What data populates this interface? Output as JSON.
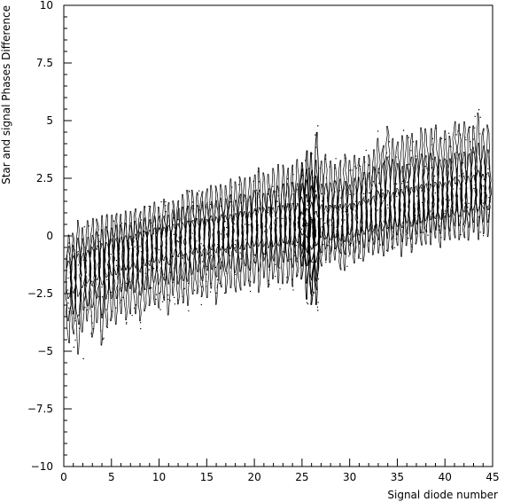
{
  "chart_data": {
    "type": "scatter",
    "style": "contour",
    "title": "",
    "xlabel": "Signal diode number",
    "ylabel": "Star and signal Phases Difference",
    "xlim": [
      0,
      45
    ],
    "ylim": [
      -10,
      10
    ],
    "x_major_ticks": [
      0,
      5,
      10,
      15,
      20,
      25,
      30,
      35,
      40,
      45
    ],
    "x_tick_labels": [
      "0",
      "5",
      "10",
      "15",
      "20",
      "25",
      "30",
      "35",
      "40",
      "45"
    ],
    "y_major_ticks": [
      -10,
      -7.5,
      -5,
      -2.5,
      0,
      2.5,
      5,
      7.5,
      10
    ],
    "y_tick_labels": [
      "−10",
      "−7.5",
      "−5",
      "−2.5",
      "0",
      "2.5",
      "5",
      "7.5",
      "10"
    ],
    "grid": false,
    "line_color": "#000000",
    "series": [
      {
        "x": [
          0.5,
          1,
          1.5,
          2,
          2.5,
          3,
          3.5,
          4,
          4.5,
          5,
          5.5,
          6,
          6.5,
          7,
          7.5,
          8,
          8.5,
          9,
          9.5,
          10,
          10.5,
          11,
          11.5,
          12,
          12.5,
          13,
          13.5,
          14,
          14.5,
          15,
          15.5,
          16,
          16.5,
          17,
          17.5,
          18,
          18.5,
          19,
          19.5,
          20,
          20.5,
          21,
          21.5,
          22,
          22.5,
          23,
          23.5,
          24,
          24.5,
          25,
          25.5,
          26,
          26.5,
          27,
          27.5,
          28,
          28.5,
          29,
          29.5,
          30,
          30.5,
          31,
          31.5,
          32,
          32.5,
          33,
          33.5,
          34,
          34.5,
          35,
          35.5,
          36,
          36.5,
          37,
          37.5,
          38,
          38.5,
          39,
          39.5,
          40,
          40.5,
          41,
          41.5,
          42,
          42.5,
          43,
          43.5,
          44,
          44.5
        ],
        "center": [
          -1.6,
          -1.5,
          -1.4,
          -1.3,
          -1.2,
          -1.1,
          -1.0,
          -0.9,
          -0.8,
          -0.7,
          -0.6,
          -0.6,
          -0.5,
          -0.5,
          -0.4,
          -0.4,
          -0.3,
          -0.3,
          -0.2,
          -0.2,
          -0.1,
          -0.1,
          0.0,
          0.0,
          0.0,
          0.0,
          0.1,
          0.1,
          0.1,
          0.1,
          0.2,
          0.2,
          0.2,
          0.2,
          0.3,
          0.3,
          0.3,
          0.3,
          0.3,
          0.4,
          0.4,
          0.4,
          0.4,
          0.4,
          0.5,
          0.5,
          0.5,
          0.5,
          0.5,
          0.5,
          0.6,
          0.0,
          0.2,
          0.5,
          0.3,
          0.3,
          0.4,
          0.4,
          0.4,
          0.5,
          0.5,
          0.5,
          0.6,
          0.6,
          0.7,
          0.7,
          0.7,
          0.8,
          0.8,
          0.9,
          0.9,
          1.0,
          1.0,
          1.0,
          1.1,
          1.1,
          1.2,
          1.2,
          1.3,
          1.3,
          1.3,
          1.4,
          1.4,
          1.5,
          1.5,
          1.6,
          1.6,
          1.7,
          1.7
        ],
        "low": [
          -5.0,
          -4.6,
          -5.2,
          -4.2,
          -4.0,
          -4.5,
          -3.8,
          -5.0,
          -4.2,
          -3.8,
          -4.0,
          -3.5,
          -3.8,
          -3.6,
          -3.5,
          -4.0,
          -3.4,
          -3.5,
          -3.2,
          -3.4,
          -3.2,
          -3.6,
          -3.0,
          -3.2,
          -3.0,
          -3.4,
          -2.8,
          -2.8,
          -3.0,
          -2.7,
          -2.6,
          -3.0,
          -2.5,
          -2.8,
          -2.6,
          -2.8,
          -2.5,
          -2.4,
          -2.6,
          -2.3,
          -2.6,
          -2.2,
          -2.6,
          -2.2,
          -2.3,
          -2.2,
          -2.1,
          -2.4,
          -2.0,
          -2.0,
          -3.0,
          -3.2,
          -3.4,
          -1.4,
          -1.2,
          -1.3,
          -1.2,
          -1.5,
          -1.6,
          -1.0,
          -1.4,
          -1.0,
          -1.2,
          -0.8,
          -0.9,
          -0.8,
          -1.0,
          -0.7,
          -0.8,
          -0.6,
          -0.9,
          -0.5,
          -0.8,
          -0.5,
          -0.6,
          -0.4,
          -0.5,
          -0.3,
          -0.6,
          -0.2,
          -0.4,
          -0.3,
          -0.3,
          -0.1,
          -0.3,
          0.0,
          -0.2,
          0.0,
          -0.1
        ],
        "high": [
          0.2,
          0.4,
          0.8,
          0.6,
          0.7,
          0.8,
          0.9,
          0.9,
          1.0,
          1.0,
          1.0,
          1.1,
          1.1,
          1.2,
          1.2,
          1.3,
          1.4,
          1.4,
          1.5,
          1.5,
          1.6,
          1.6,
          1.7,
          1.8,
          1.9,
          2.0,
          2.0,
          2.1,
          2.2,
          2.2,
          2.3,
          2.3,
          2.4,
          2.4,
          2.5,
          2.5,
          2.6,
          2.7,
          2.8,
          2.9,
          3.0,
          2.9,
          3.0,
          3.1,
          3.2,
          3.2,
          3.3,
          3.4,
          3.5,
          3.5,
          3.8,
          4.0,
          4.6,
          3.4,
          3.6,
          3.5,
          3.4,
          3.6,
          3.7,
          3.5,
          3.6,
          3.7,
          3.9,
          4.0,
          4.2,
          4.6,
          4.4,
          4.8,
          4.6,
          4.5,
          4.4,
          4.6,
          4.7,
          4.6,
          4.8,
          4.7,
          4.8,
          4.9,
          4.6,
          4.8,
          4.8,
          5.0,
          4.9,
          5.1,
          4.8,
          5.2,
          5.4,
          5.1,
          5.2
        ]
      }
    ]
  }
}
